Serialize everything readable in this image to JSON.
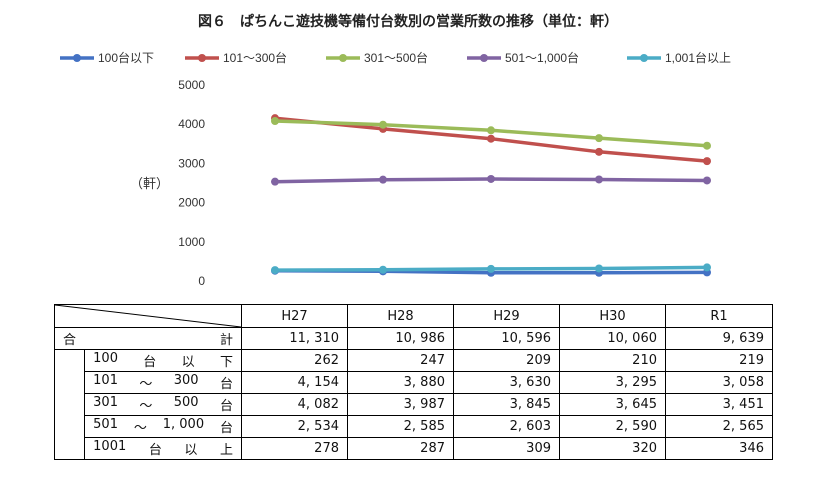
{
  "chart_data": {
    "type": "line",
    "title": "図６　ぱちんこ遊技機等備付台数別の営業所数の推移（単位：軒）",
    "ylabel": "（軒）",
    "ylim": [
      0,
      5000
    ],
    "yticks": [
      "0",
      "1000",
      "2000",
      "3000",
      "4000",
      "5000"
    ],
    "categories": [
      "H27",
      "H28",
      "H29",
      "H30",
      "R1"
    ],
    "legend_position": "top",
    "series": [
      {
        "name": "100台以下",
        "color": "#4472c4",
        "values": [
          262,
          247,
          209,
          210,
          219
        ]
      },
      {
        "name": "101～300台",
        "color": "#c0504d",
        "values": [
          4154,
          3880,
          3630,
          3295,
          3058
        ]
      },
      {
        "name": "301～500台",
        "color": "#9bbb59",
        "values": [
          4082,
          3987,
          3845,
          3645,
          3451
        ]
      },
      {
        "name": "501～1,000台",
        "color": "#8064a2",
        "values": [
          2534,
          2585,
          2603,
          2590,
          2565
        ]
      },
      {
        "name": "1,001台以上",
        "color": "#4bacc6",
        "values": [
          278,
          287,
          309,
          320,
          346
        ]
      }
    ]
  },
  "table": {
    "years": [
      "H27",
      "H28",
      "H29",
      "H30",
      "R1"
    ],
    "total_label_left": "合",
    "total_label_right": "計",
    "total_values": [
      "11, 310",
      "10, 986",
      "10, 596",
      "10, 060",
      "9, 639"
    ],
    "rows": [
      {
        "label_parts": [
          "100",
          "台",
          "以",
          "下"
        ],
        "values": [
          "262",
          "247",
          "209",
          "210",
          "219"
        ]
      },
      {
        "label_parts": [
          "101",
          "～",
          "300",
          "台"
        ],
        "values": [
          "4, 154",
          "3, 880",
          "3, 630",
          "3, 295",
          "3, 058"
        ]
      },
      {
        "label_parts": [
          "301",
          "～",
          "500",
          "台"
        ],
        "values": [
          "4, 082",
          "3, 987",
          "3, 845",
          "3, 645",
          "3, 451"
        ]
      },
      {
        "label_parts": [
          "501",
          "～",
          "1, 000",
          "台"
        ],
        "values": [
          "2, 534",
          "2, 585",
          "2, 603",
          "2, 590",
          "2, 565"
        ]
      },
      {
        "label_parts": [
          "1001",
          "台",
          "以",
          "上"
        ],
        "values": [
          "278",
          "287",
          "309",
          "320",
          "346"
        ]
      }
    ]
  }
}
